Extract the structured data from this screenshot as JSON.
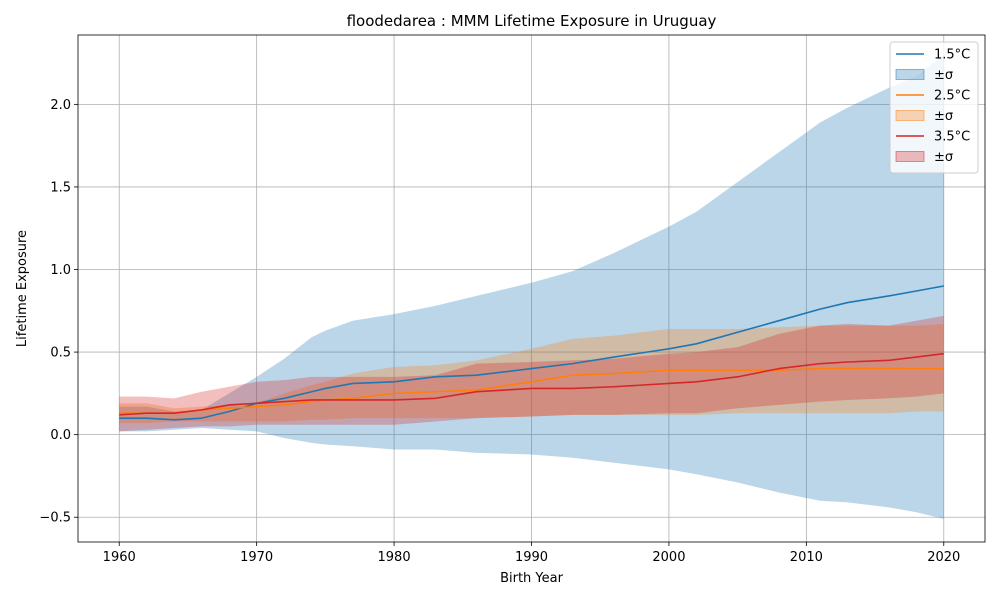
{
  "chart_data": {
    "type": "line",
    "title": "floodedarea : MMM Lifetime Exposure in Uruguay",
    "xlabel": "Birth Year",
    "ylabel": "Lifetime Exposure",
    "xlim": [
      1957,
      2023
    ],
    "ylim": [
      -0.65,
      2.42
    ],
    "xticks": [
      1960,
      1970,
      1980,
      1990,
      2000,
      2010,
      2020
    ],
    "yticks": [
      -0.5,
      0.0,
      0.5,
      1.0,
      1.5,
      2.0
    ],
    "ytick_labels": [
      "−0.5",
      "0.0",
      "0.5",
      "1.0",
      "1.5",
      "2.0"
    ],
    "grid": true,
    "legend_position": "top-right",
    "x": [
      1960,
      1962,
      1964,
      1966,
      1968,
      1970,
      1972,
      1974,
      1975,
      1977,
      1980,
      1983,
      1986,
      1990,
      1993,
      1996,
      2000,
      2002,
      2005,
      2008,
      2011,
      2013,
      2016,
      2018,
      2020
    ],
    "series": [
      {
        "name": "1.5°C",
        "band_label": "±σ",
        "color": "#1f77b4",
        "band_color": "#1f77b4",
        "band_opacity": 0.3,
        "mean": [
          0.1,
          0.1,
          0.09,
          0.1,
          0.14,
          0.19,
          0.22,
          0.26,
          0.28,
          0.31,
          0.32,
          0.35,
          0.36,
          0.4,
          0.43,
          0.47,
          0.52,
          0.55,
          0.62,
          0.69,
          0.76,
          0.8,
          0.84,
          0.87,
          0.9
        ],
        "upper": [
          0.17,
          0.17,
          0.14,
          0.15,
          0.25,
          0.35,
          0.46,
          0.59,
          0.63,
          0.69,
          0.73,
          0.78,
          0.84,
          0.92,
          0.99,
          1.1,
          1.26,
          1.35,
          1.53,
          1.71,
          1.89,
          1.98,
          2.1,
          2.17,
          2.3
        ],
        "lower": [
          0.02,
          0.02,
          0.03,
          0.04,
          0.03,
          0.02,
          -0.02,
          -0.05,
          -0.06,
          -0.07,
          -0.09,
          -0.09,
          -0.11,
          -0.12,
          -0.14,
          -0.17,
          -0.21,
          -0.24,
          -0.29,
          -0.35,
          -0.4,
          -0.41,
          -0.44,
          -0.47,
          -0.51
        ]
      },
      {
        "name": "2.5°C",
        "band_label": "±σ",
        "color": "#ff7f0e",
        "band_color": "#ff7f0e",
        "band_opacity": 0.3,
        "mean": [
          0.13,
          0.13,
          0.13,
          0.15,
          0.16,
          0.17,
          0.18,
          0.2,
          0.21,
          0.22,
          0.25,
          0.26,
          0.27,
          0.32,
          0.36,
          0.37,
          0.39,
          0.39,
          0.39,
          0.39,
          0.4,
          0.4,
          0.4,
          0.4,
          0.4
        ],
        "upper": [
          0.19,
          0.19,
          0.16,
          0.17,
          0.18,
          0.19,
          0.25,
          0.3,
          0.32,
          0.37,
          0.41,
          0.42,
          0.45,
          0.52,
          0.58,
          0.6,
          0.64,
          0.64,
          0.64,
          0.65,
          0.66,
          0.66,
          0.66,
          0.66,
          0.67
        ],
        "lower": [
          0.07,
          0.07,
          0.08,
          0.08,
          0.08,
          0.08,
          0.08,
          0.09,
          0.09,
          0.1,
          0.1,
          0.1,
          0.1,
          0.11,
          0.12,
          0.12,
          0.12,
          0.12,
          0.13,
          0.13,
          0.13,
          0.13,
          0.13,
          0.14,
          0.14
        ]
      },
      {
        "name": "3.5°C",
        "band_label": "±σ",
        "color": "#d62728",
        "band_color": "#d62728",
        "band_opacity": 0.3,
        "mean": [
          0.12,
          0.13,
          0.13,
          0.15,
          0.18,
          0.19,
          0.2,
          0.21,
          0.21,
          0.21,
          0.21,
          0.22,
          0.26,
          0.28,
          0.28,
          0.29,
          0.31,
          0.32,
          0.35,
          0.4,
          0.43,
          0.44,
          0.45,
          0.47,
          0.49
        ],
        "upper": [
          0.23,
          0.23,
          0.22,
          0.26,
          0.29,
          0.32,
          0.33,
          0.35,
          0.35,
          0.35,
          0.35,
          0.36,
          0.43,
          0.44,
          0.45,
          0.46,
          0.49,
          0.5,
          0.53,
          0.61,
          0.66,
          0.67,
          0.66,
          0.69,
          0.72
        ],
        "lower": [
          0.02,
          0.03,
          0.04,
          0.05,
          0.05,
          0.06,
          0.06,
          0.06,
          0.06,
          0.06,
          0.06,
          0.08,
          0.1,
          0.11,
          0.12,
          0.12,
          0.13,
          0.13,
          0.16,
          0.18,
          0.2,
          0.21,
          0.22,
          0.23,
          0.25
        ]
      }
    ]
  }
}
